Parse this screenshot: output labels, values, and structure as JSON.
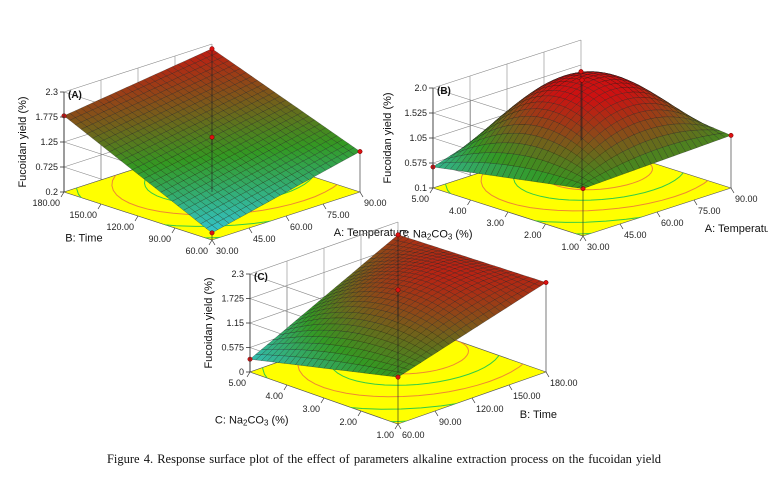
{
  "caption": "Figure 4. Response surface plot of the effect of parameters  alkaline  extraction  process  on  the  fucoidan  yield",
  "colors": {
    "floor": "#ffff00",
    "contour_green": "#33cc44",
    "contour_orange": "#ee8833",
    "surface_high": "#cc1111",
    "surface_mid": "#339922",
    "surface_low": "#33ccee"
  },
  "chart_data": [
    {
      "type": "surface",
      "panel_label": "(A)",
      "zlabel": "Fucoidan yield (%)",
      "z_ticks": [
        "0.2",
        "0.725",
        "1.25",
        "1.775",
        "2.3"
      ],
      "zlim": [
        0.2,
        2.3
      ],
      "x_label": "A: Temperature",
      "x_ticks": [
        "30.00",
        "45.00",
        "60.00",
        "75.00",
        "90.00"
      ],
      "y_label": "B: Time",
      "y_ticks": [
        "60.00",
        "90.00",
        "120.00",
        "150.00",
        "180.00"
      ],
      "corners": {
        "front": 0.35,
        "right": 1.05,
        "left": 1.8,
        "back": 2.2
      },
      "peak": 0
    },
    {
      "type": "surface",
      "panel_label": "(B)",
      "zlabel": "Fucoidan yield (%)",
      "z_ticks": [
        "0.1",
        "0.575",
        "1.05",
        "1.525",
        "2.0"
      ],
      "zlim": [
        0.1,
        2.0
      ],
      "x_label": "A: Temperature",
      "x_ticks": [
        "30.00",
        "45.00",
        "60.00",
        "75.00",
        "90.00"
      ],
      "y_label": "C:  Na2CO3 (%)",
      "y_ticks": [
        "1.00",
        "2.00",
        "3.00",
        "4.00",
        "5.00"
      ],
      "corners": {
        "front": 1.0,
        "right": 1.1,
        "left": 0.5,
        "back": 1.4
      },
      "peak": 1.15
    },
    {
      "type": "surface",
      "panel_label": "(C)",
      "zlabel": "Fucoidan yield (%)",
      "z_ticks": [
        "0",
        "0.575",
        "1.15",
        "1.725",
        "2.3"
      ],
      "zlim": [
        0,
        2.3
      ],
      "x_label": "B: Time",
      "x_ticks": [
        "60.00",
        "90.00",
        "120.00",
        "150.00",
        "180.00"
      ],
      "y_label": "C:   Na2CO3 (%)",
      "y_ticks": [
        "1.00",
        "2.00",
        "3.00",
        "4.00",
        "5.00"
      ],
      "corners": {
        "front": 1.1,
        "right": 2.1,
        "left": 0.3,
        "back": 2.0
      },
      "peak": 0.55
    }
  ]
}
